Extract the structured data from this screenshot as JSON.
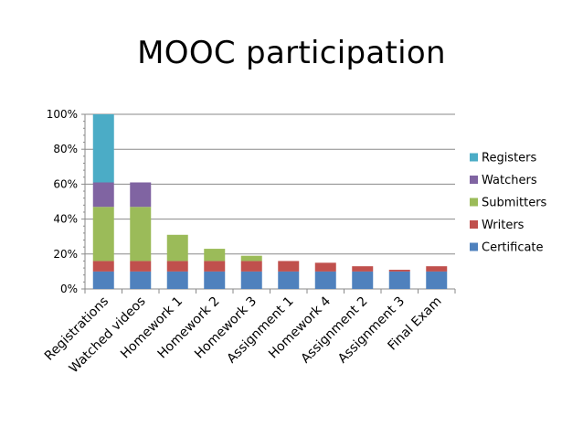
{
  "chart_data": {
    "type": "bar",
    "stacked": true,
    "title": "MOOC participation",
    "xlabel": "",
    "ylabel": "",
    "ylim": [
      0,
      100
    ],
    "y_ticks": [
      "0%",
      "20%",
      "40%",
      "60%",
      "80%",
      "100%"
    ],
    "grid": true,
    "legend_position": "right",
    "categories": [
      "Registrations",
      "Watched videos",
      "Homework 1",
      "Homework 2",
      "Homework 3",
      "Assignment 1",
      "Homework 4",
      "Assignment 2",
      "Assignment 3",
      "Final Exam"
    ],
    "series": [
      {
        "name": "Certificate",
        "color": "#4f81bd",
        "values": [
          10,
          10,
          10,
          10,
          10,
          10,
          10,
          10,
          10,
          10
        ]
      },
      {
        "name": "Writers",
        "color": "#c0504d",
        "values": [
          6,
          6,
          6,
          6,
          6,
          6,
          5,
          3,
          1,
          3
        ]
      },
      {
        "name": "Submitters",
        "color": "#9bbb59",
        "values": [
          31,
          31,
          15,
          7,
          3,
          0,
          0,
          0,
          0,
          0
        ]
      },
      {
        "name": "Watchers",
        "color": "#8064a2",
        "values": [
          14,
          14,
          0,
          0,
          0,
          0,
          0,
          0,
          0,
          0
        ]
      },
      {
        "name": "Registers",
        "color": "#4bacc6",
        "values": [
          39,
          0,
          0,
          0,
          0,
          0,
          0,
          0,
          0,
          0
        ]
      }
    ]
  }
}
